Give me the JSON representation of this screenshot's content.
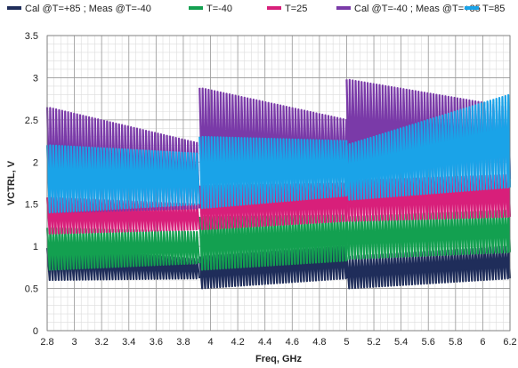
{
  "chart_data": {
    "type": "line",
    "xlabel": "Freq, GHz",
    "ylabel": "VCTRL, V",
    "xlim": [
      2.8,
      6.2
    ],
    "ylim": [
      0,
      3.5
    ],
    "xticks": [
      "2.8",
      "3",
      "3.2",
      "3.4",
      "3.6",
      "3.8",
      "4",
      "4.2",
      "4.4",
      "4.6",
      "4.8",
      "5",
      "5.2",
      "5.4",
      "5.6",
      "5.8",
      "6",
      "6.2"
    ],
    "yticks": [
      "0",
      "0.5",
      "1",
      "1.5",
      "2",
      "2.5",
      "3",
      "3.5"
    ],
    "grid": true,
    "legend_position": "top",
    "band_edges_ghz": [
      2.8,
      3.92,
      5.0,
      6.2
    ],
    "series": [
      {
        "name": "Cal @T=+85 ; Meas @T=-40",
        "color": "#1f2d5a",
        "bands": [
          {
            "min": [
              0.6,
              0.62
            ],
            "max": [
              0.98,
              0.85
            ]
          },
          {
            "min": [
              0.5,
              0.62
            ],
            "max": [
              0.88,
              1.0
            ]
          },
          {
            "min": [
              0.5,
              0.62
            ],
            "max": [
              0.88,
              1.0
            ]
          }
        ]
      },
      {
        "name": "T=-40",
        "color": "#13a050",
        "bands": [
          {
            "min": [
              0.72,
              0.8
            ],
            "max": [
              1.22,
              1.17
            ]
          },
          {
            "min": [
              0.72,
              0.83
            ],
            "max": [
              1.35,
              1.37
            ]
          },
          {
            "min": [
              0.85,
              0.93
            ],
            "max": [
              1.35,
              1.43
            ]
          }
        ]
      },
      {
        "name": "T=25",
        "color": "#d81f7a",
        "bands": [
          {
            "min": [
              1.15,
              1.2
            ],
            "max": [
              1.58,
              1.5
            ]
          },
          {
            "min": [
              1.2,
              1.3
            ],
            "max": [
              1.72,
              1.75
            ]
          },
          {
            "min": [
              1.3,
              1.35
            ],
            "max": [
              1.78,
              1.85
            ]
          }
        ]
      },
      {
        "name": "Cal @T=-40 ; Meas @T=+85",
        "color": "#7a3aa8",
        "bands": [
          {
            "min": [
              1.4,
              1.45
            ],
            "max": [
              2.65,
              2.22
            ]
          },
          {
            "min": [
              1.55,
              1.7
            ],
            "max": [
              2.88,
              2.5
            ]
          },
          {
            "min": [
              1.7,
              1.8
            ],
            "max": [
              2.98,
              2.65
            ]
          }
        ]
      },
      {
        "name": "T=85",
        "color": "#1aa3e8",
        "bands": [
          {
            "min": [
              1.4,
              1.5
            ],
            "max": [
              2.2,
              2.1
            ]
          },
          {
            "min": [
              1.45,
              1.6
            ],
            "max": [
              2.3,
              2.25
            ]
          },
          {
            "min": [
              1.55,
              1.7
            ],
            "max": [
              2.2,
              2.8
            ]
          }
        ]
      }
    ]
  }
}
